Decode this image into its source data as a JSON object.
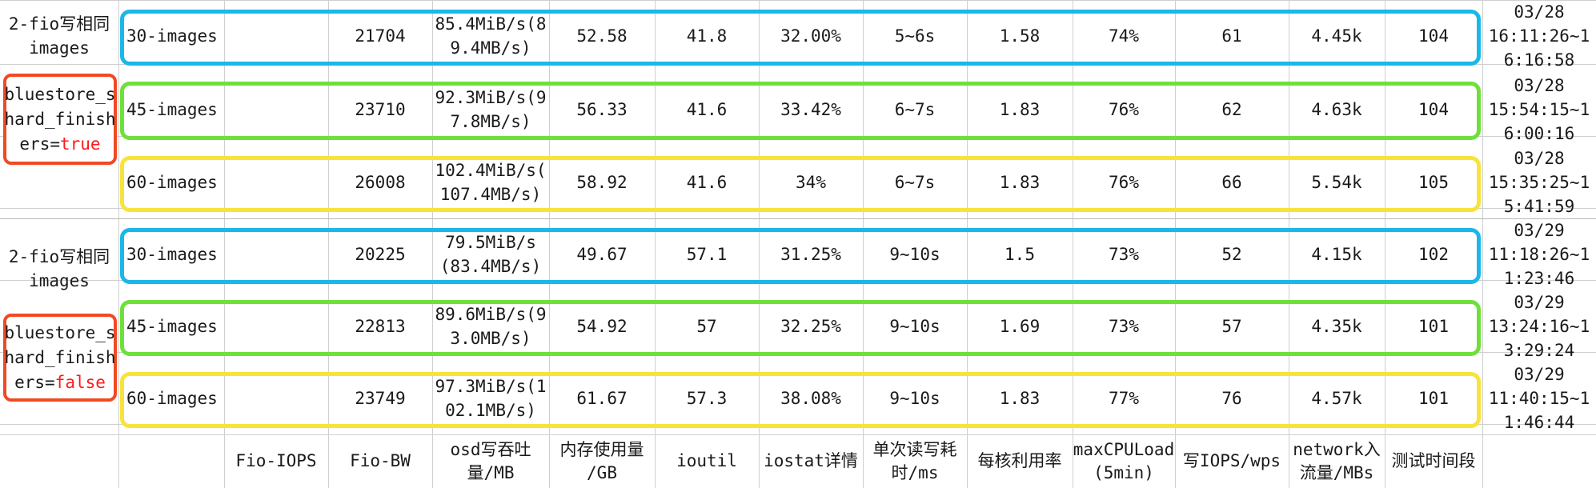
{
  "headers": [
    "",
    "",
    "Fio-IOPS",
    "Fio-BW",
    "osd写吞吐\n量/MB",
    "内存使用量\n/GB",
    "ioutil",
    "iostat详情",
    "单次读写耗\n时/ms",
    "每核利用率",
    "maxCPULoad\n(5min)",
    "写IOPS/wps",
    "network入\n流量/MBs",
    "测试时间段"
  ],
  "groups": [
    {
      "title": "2-fio写相同\nimages",
      "setting_lines": [
        "bluestore_s",
        "hard_finish"
      ],
      "setting_key": "ers=",
      "setting_value": "true",
      "rows": [
        {
          "cells": [
            "30-images",
            "",
            "21704",
            "85.4MiB/s(8\n9.4MB/s)",
            "52.58",
            "41.8",
            "32.00%",
            "5~6s",
            "1.58",
            "74%",
            "61",
            "4.45k",
            "104",
            "03/28\n16:11:26~1\n6:16:58"
          ]
        },
        {
          "cells": [
            "45-images",
            "",
            "23710",
            "92.3MiB/s(9\n7.8MB/s)",
            "56.33",
            "41.6",
            "33.42%",
            "6~7s",
            "1.83",
            "76%",
            "62",
            "4.63k",
            "104",
            "03/28\n15:54:15~1\n6:00:16"
          ]
        },
        {
          "cells": [
            "60-images",
            "",
            "26008",
            "102.4MiB/s(\n107.4MB/s)",
            "58.92",
            "41.6",
            "34%",
            "6~7s",
            "1.83",
            "76%",
            "66",
            "5.54k",
            "105",
            "03/28\n15:35:25~1\n5:41:59"
          ]
        }
      ]
    },
    {
      "title": "2-fio写相同\nimages",
      "setting_lines": [
        "bluestore_s",
        "hard_finish"
      ],
      "setting_key": "ers=",
      "setting_value": "false",
      "rows": [
        {
          "cells": [
            "30-images",
            "",
            "20225",
            "79.5MiB/s\n(83.4MB/s)",
            "49.67",
            "57.1",
            "31.25%",
            "9~10s",
            "1.5",
            "73%",
            "52",
            "4.15k",
            "102",
            "03/29\n11:18:26~1\n1:23:46"
          ]
        },
        {
          "cells": [
            "45-images",
            "",
            "22813",
            "89.6MiB/s(9\n3.0MB/s)",
            "54.92",
            "57",
            "32.25%",
            "9~10s",
            "1.69",
            "73%",
            "57",
            "4.35k",
            "101",
            "03/29\n13:24:16~1\n3:29:24"
          ]
        },
        {
          "cells": [
            "60-images",
            "",
            "23749",
            "97.3MiB/s(1\n02.1MB/s)",
            "61.67",
            "57.3",
            "38.08%",
            "9~10s",
            "1.83",
            "77%",
            "76",
            "4.57k",
            "101",
            "03/29\n11:40:15~1\n1:46:44"
          ]
        }
      ]
    }
  ],
  "highlight_colors": {
    "30-images": "#1ab8e8",
    "45-images": "#6ee03a",
    "60-images": "#f8e23c"
  },
  "setting_border_color": "#f04a24",
  "setting_value_color": "#ff1a1a"
}
